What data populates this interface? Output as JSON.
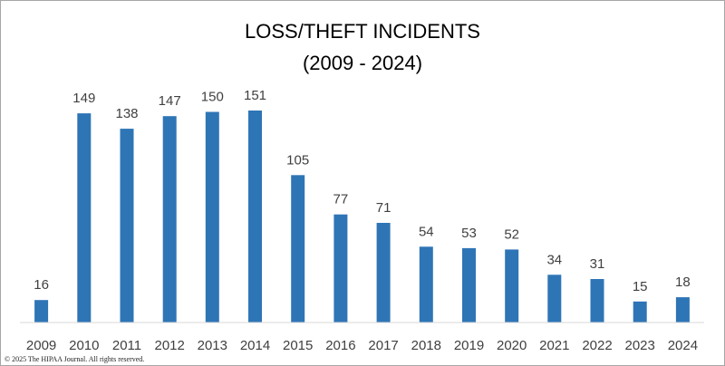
{
  "chart_data": {
    "type": "bar",
    "title": "LOSS/THEFT INCIDENTS",
    "subtitle": "(2009 - 2024)",
    "xlabel": "",
    "ylabel": "",
    "categories": [
      "2009",
      "2010",
      "2011",
      "2012",
      "2013",
      "2014",
      "2015",
      "2016",
      "2017",
      "2018",
      "2019",
      "2020",
      "2021",
      "2022",
      "2023",
      "2024"
    ],
    "values": [
      16,
      149,
      138,
      147,
      150,
      151,
      105,
      77,
      71,
      54,
      53,
      52,
      34,
      31,
      15,
      18
    ],
    "ylim": [
      0,
      151
    ],
    "grid": false,
    "legend": "none",
    "bar_color": "#2e75b6",
    "axis_color": "#d9d9d9"
  },
  "footer": {
    "copyright": "© 2025 The HIPAA Journal. All rights reserved."
  }
}
